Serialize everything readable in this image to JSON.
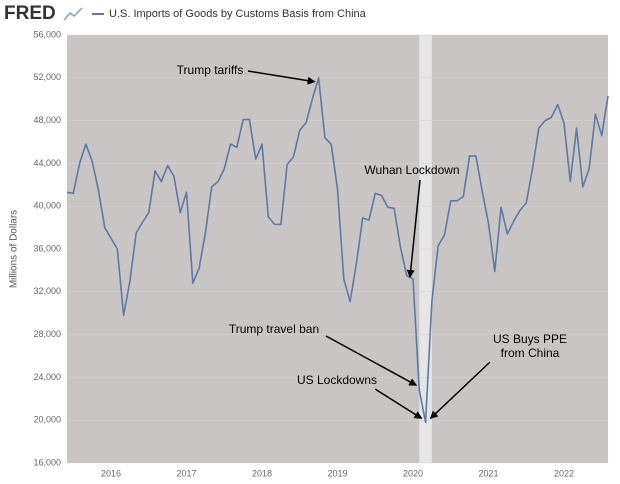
{
  "chart_data": {
    "type": "line",
    "brand": "FRED",
    "ylabel": "Millions of Dollars",
    "categories": [
      null,
      null,
      null,
      null,
      null,
      null,
      null,
      "2016",
      null,
      null,
      null,
      null,
      null,
      null,
      null,
      null,
      null,
      null,
      null,
      "2017",
      null,
      null,
      null,
      null,
      null,
      null,
      null,
      null,
      null,
      null,
      null,
      "2018",
      null,
      null,
      null,
      null,
      null,
      null,
      null,
      null,
      null,
      null,
      null,
      "2019",
      null,
      null,
      null,
      null,
      null,
      null,
      null,
      null,
      null,
      null,
      null,
      "2020",
      null,
      null,
      null,
      null,
      null,
      null,
      null,
      null,
      null,
      null,
      null,
      "2021",
      null,
      null,
      null,
      null,
      null,
      null,
      null,
      null,
      null,
      null,
      null,
      "2022",
      null,
      null,
      null,
      null,
      null,
      null,
      null
    ],
    "series": [
      {
        "name": "U.S. Imports of Goods by Customs Basis from China",
        "color": "#5e7aa3",
        "values": [
          41300,
          41200,
          44000,
          45800,
          44200,
          41500,
          38000,
          37000,
          36000,
          29800,
          33000,
          37500,
          38500,
          39400,
          43300,
          42300,
          43800,
          42800,
          39400,
          41300,
          32800,
          34200,
          37500,
          41800,
          42300,
          43500,
          45800,
          45500,
          48100,
          48100,
          44400,
          45800,
          39000,
          38300,
          38300,
          43900,
          44600,
          47100,
          47800,
          50000,
          52000,
          46400,
          45800,
          41600,
          33200,
          31100,
          34600,
          38900,
          38700,
          41200,
          41000,
          39900,
          39800,
          36200,
          33500,
          33200,
          22800,
          19800,
          31100,
          36300,
          37300,
          40500,
          40500,
          40900,
          44700,
          44700,
          41400,
          38400,
          33900,
          39900,
          37400,
          38600,
          39600,
          40300,
          43500,
          47300,
          48000,
          48300,
          49500,
          47800,
          42300,
          47300,
          41800,
          43500,
          48600,
          46600,
          50300
        ]
      }
    ],
    "ylim": [
      16000,
      56000
    ],
    "yticks": [
      {
        "value": 16000,
        "label": "16,000"
      },
      {
        "value": 20000,
        "label": "20,000"
      },
      {
        "value": 24000,
        "label": "24,000"
      },
      {
        "value": 28000,
        "label": "28,000"
      },
      {
        "value": 32000,
        "label": "32,000"
      },
      {
        "value": 36000,
        "label": "36,000"
      },
      {
        "value": 40000,
        "label": "40,000"
      },
      {
        "value": 44000,
        "label": "44,000"
      },
      {
        "value": 48000,
        "label": "48,000"
      },
      {
        "value": 52000,
        "label": "52,000"
      },
      {
        "value": 56000,
        "label": "56,000"
      }
    ],
    "grid": true,
    "shaded": {
      "from": 56,
      "to": 58
    },
    "annotations": [
      {
        "text": [
          "Trump tariffs"
        ],
        "point": 40
      },
      {
        "text": [
          "Wuhan Lockdown"
        ],
        "point": 55
      },
      {
        "text": [
          "Trump travel ban"
        ],
        "point": 56
      },
      {
        "text": [
          "US Lockdowns"
        ],
        "point": 57
      },
      {
        "text": [
          "US Buys PPE",
          "from China"
        ],
        "point": 57
      }
    ]
  }
}
